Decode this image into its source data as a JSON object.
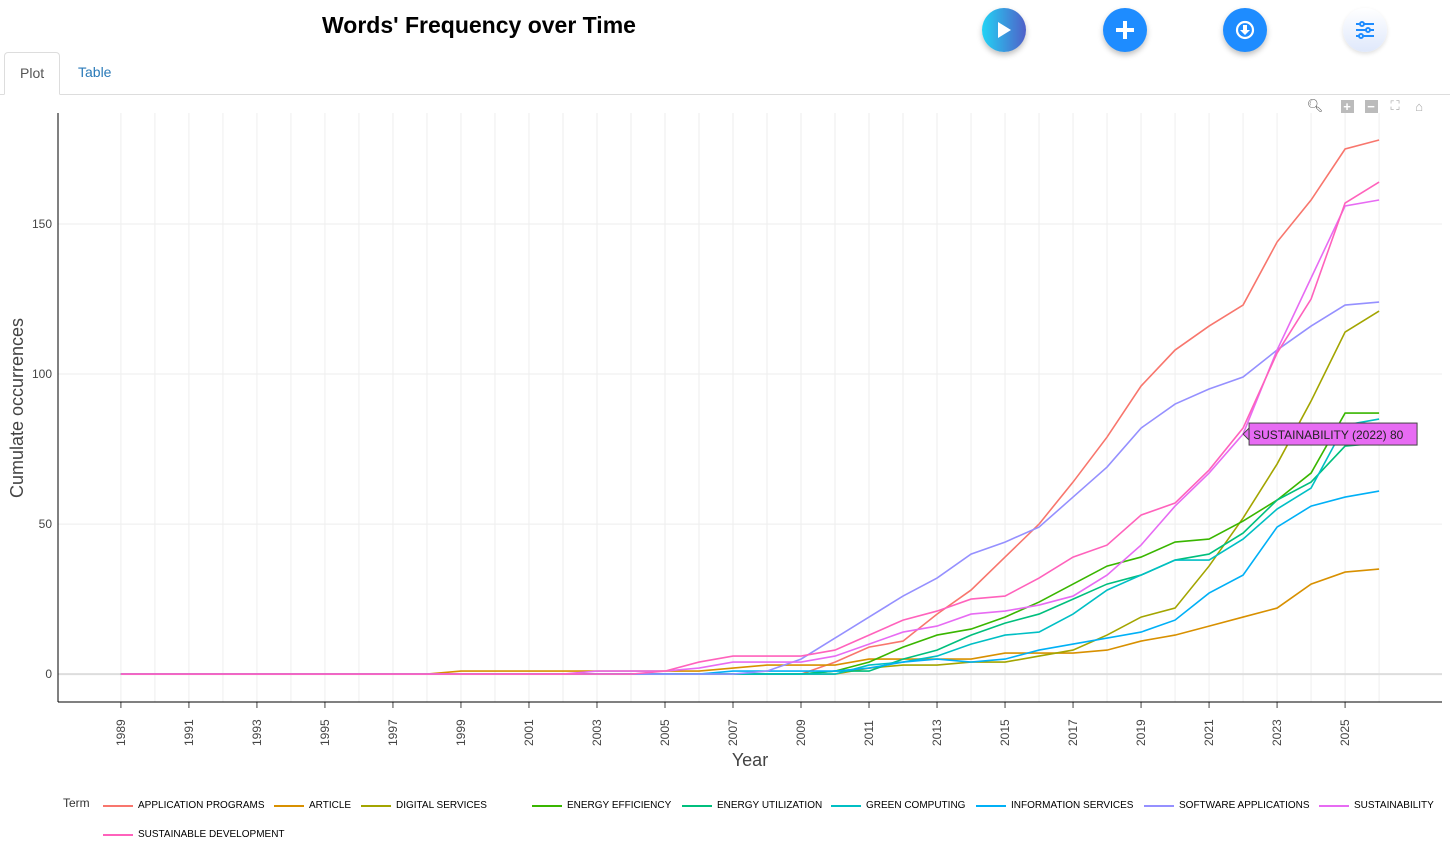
{
  "header": {
    "title": "Words' Frequency over Time"
  },
  "buttons": {
    "play": "play-icon",
    "add": "plus-icon",
    "download": "download-icon",
    "settings": "sliders-icon"
  },
  "tabs": [
    {
      "label": "Plot"
    },
    {
      "label": "Table"
    }
  ],
  "modebar": [
    "zoom-icon",
    "zoom-in-icon",
    "zoom-out-icon",
    "autoscale-icon",
    "reset-home-icon"
  ],
  "tooltip": "SUSTAINABILITY (2022) 80",
  "chart_data": {
    "type": "line",
    "title": "",
    "xlabel": "Year",
    "ylabel": "Cumulate occurrences",
    "xlim": [
      1987.15,
      2027.85
    ],
    "ylim": [
      -9.3,
      187
    ],
    "x_ticks": [
      "1989",
      "1991",
      "1993",
      "1995",
      "1997",
      "1999",
      "2001",
      "2003",
      "2005",
      "2007",
      "2009",
      "2011",
      "2013",
      "2015",
      "2017",
      "2019",
      "2021",
      "2023",
      "2025"
    ],
    "y_ticks": [
      "0",
      "50",
      "100",
      "150"
    ],
    "grid": true,
    "legend_title": "Term",
    "legend_placement": "bottom",
    "x": [
      1989,
      1990,
      1991,
      1992,
      1993,
      1994,
      1995,
      1996,
      1997,
      1998,
      1999,
      2000,
      2001,
      2002,
      2003,
      2004,
      2005,
      2006,
      2007,
      2008,
      2009,
      2010,
      2011,
      2012,
      2013,
      2014,
      2015,
      2016,
      2017,
      2018,
      2019,
      2020,
      2021,
      2022,
      2023,
      2024,
      2025,
      2026
    ],
    "series": [
      {
        "name": "APPLICATION PROGRAMS",
        "color": "#F8766D",
        "values": [
          0,
          0,
          0,
          0,
          0,
          0,
          0,
          0,
          0,
          0,
          0,
          0,
          0,
          0,
          0,
          0,
          0,
          0,
          0,
          0,
          0,
          4,
          9,
          11,
          20,
          28,
          39,
          50,
          64,
          79,
          96,
          108,
          116,
          123,
          144,
          158,
          175,
          178
        ]
      },
      {
        "name": "ARTICLE",
        "color": "#D89000",
        "values": [
          0,
          0,
          0,
          0,
          0,
          0,
          0,
          0,
          0,
          0,
          1,
          1,
          1,
          1,
          1,
          1,
          1,
          1,
          2,
          3,
          3,
          3,
          5,
          5,
          5,
          5,
          7,
          7,
          7,
          8,
          11,
          13,
          16,
          19,
          22,
          30,
          34,
          35
        ]
      },
      {
        "name": "DIGITAL SERVICES",
        "color": "#A3A500",
        "values": [
          0,
          0,
          0,
          0,
          0,
          0,
          0,
          0,
          0,
          0,
          0,
          0,
          0,
          0,
          0,
          0,
          0,
          0,
          0,
          0,
          0,
          0,
          2,
          3,
          3,
          4,
          4,
          6,
          8,
          13,
          19,
          22,
          36,
          52,
          70,
          91,
          114,
          121
        ]
      },
      {
        "name": "ENERGY EFFICIENCY",
        "color": "#39B600",
        "values": [
          0,
          0,
          0,
          0,
          0,
          0,
          0,
          0,
          0,
          0,
          0,
          0,
          0,
          0,
          0,
          0,
          0,
          0,
          0,
          0,
          0,
          1,
          4,
          9,
          13,
          15,
          19,
          24,
          30,
          36,
          39,
          44,
          45,
          51,
          58,
          67,
          87,
          87
        ]
      },
      {
        "name": "ENERGY UTILIZATION",
        "color": "#00BF7D",
        "values": [
          0,
          0,
          0,
          0,
          0,
          0,
          0,
          0,
          0,
          0,
          0,
          0,
          0,
          0,
          0,
          0,
          0,
          0,
          0,
          0,
          0,
          1,
          1,
          5,
          8,
          13,
          17,
          20,
          25,
          30,
          33,
          38,
          40,
          47,
          58,
          64,
          76,
          77
        ]
      },
      {
        "name": "GREEN COMPUTING",
        "color": "#00BFC4",
        "values": [
          0,
          0,
          0,
          0,
          0,
          0,
          0,
          0,
          0,
          0,
          0,
          0,
          0,
          0,
          0,
          0,
          0,
          0,
          0,
          0,
          0,
          0,
          3,
          4,
          6,
          10,
          13,
          14,
          20,
          28,
          33,
          38,
          38,
          45,
          55,
          62,
          83,
          85
        ]
      },
      {
        "name": "INFORMATION SERVICES",
        "color": "#00B0F6",
        "values": [
          0,
          0,
          0,
          0,
          0,
          0,
          0,
          0,
          0,
          0,
          0,
          0,
          0,
          0,
          0,
          0,
          0,
          0,
          1,
          1,
          1,
          1,
          2,
          4,
          5,
          4,
          5,
          8,
          10,
          12,
          14,
          18,
          27,
          33,
          49,
          56,
          59,
          61
        ]
      },
      {
        "name": "SOFTWARE APPLICATIONS",
        "color": "#9590FF",
        "values": [
          0,
          0,
          0,
          0,
          0,
          0,
          0,
          0,
          0,
          0,
          0,
          0,
          0,
          0,
          0,
          0,
          0,
          0,
          0,
          1,
          5,
          12,
          19,
          26,
          32,
          40,
          44,
          49,
          59,
          69,
          82,
          90,
          95,
          99,
          108,
          116,
          123,
          124
        ]
      },
      {
        "name": "SUSTAINABILITY",
        "color": "#E76BF3",
        "values": [
          0,
          0,
          0,
          0,
          0,
          0,
          0,
          0,
          0,
          0,
          0,
          0,
          0,
          0,
          1,
          1,
          1,
          2,
          4,
          4,
          4,
          6,
          10,
          14,
          16,
          20,
          21,
          23,
          26,
          33,
          43,
          56,
          67,
          80,
          108,
          132,
          156,
          158
        ]
      },
      {
        "name": "SUSTAINABLE DEVELOPMENT",
        "color": "#FF62BC",
        "values": [
          0,
          0,
          0,
          0,
          0,
          0,
          0,
          0,
          0,
          0,
          0,
          0,
          0,
          0,
          0,
          0,
          1,
          4,
          6,
          6,
          6,
          8,
          13,
          18,
          21,
          25,
          26,
          32,
          39,
          43,
          53,
          57,
          68,
          82,
          107,
          125,
          157,
          164
        ]
      }
    ]
  }
}
